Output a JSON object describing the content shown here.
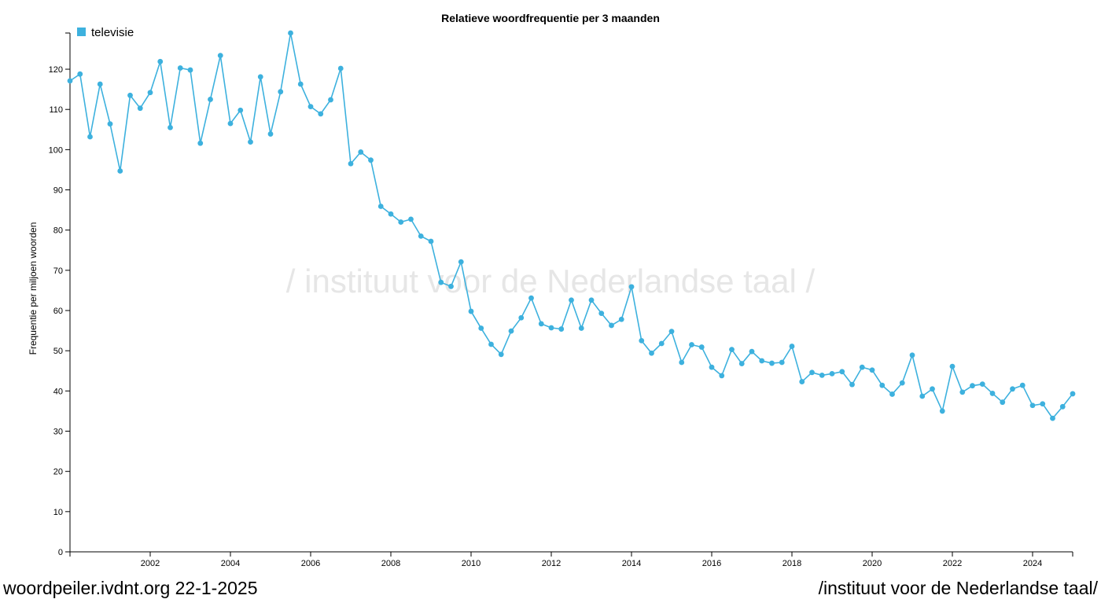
{
  "footer": {
    "left": "woordpeiler.ivdnt.org 22-1-2025",
    "right": "/instituut voor de Nederlandse taal/"
  },
  "watermark": "/ instituut voor de Nederlandse taal /",
  "colors": {
    "series": "#3db1de",
    "axis": "#000000",
    "watermark": "#e6e6e6"
  },
  "chart_data": {
    "type": "line",
    "title": "Relatieve woordfrequentie per 3 maanden",
    "xlabel": "",
    "ylabel": "Frequentie per miljoen woorden",
    "xlim": [
      2000.0,
      2025.0
    ],
    "ylim": [
      0,
      129
    ],
    "grid": false,
    "legend_position": "top-left",
    "x_ticks": [
      2002,
      2004,
      2006,
      2008,
      2010,
      2012,
      2014,
      2016,
      2018,
      2020,
      2022,
      2024
    ],
    "y_ticks": [
      0,
      10,
      20,
      30,
      40,
      50,
      60,
      70,
      80,
      90,
      100,
      110,
      120
    ],
    "series": [
      {
        "name": "televisie",
        "color": "#3db1de",
        "x": [
          2000.0,
          2000.25,
          2000.5,
          2000.75,
          2001.0,
          2001.25,
          2001.5,
          2001.75,
          2002.0,
          2002.25,
          2002.5,
          2002.75,
          2003.0,
          2003.25,
          2003.5,
          2003.75,
          2004.0,
          2004.25,
          2004.5,
          2004.75,
          2005.0,
          2005.25,
          2005.5,
          2005.75,
          2006.0,
          2006.25,
          2006.5,
          2006.75,
          2007.0,
          2007.25,
          2007.5,
          2007.75,
          2008.0,
          2008.25,
          2008.5,
          2008.75,
          2009.0,
          2009.25,
          2009.5,
          2009.75,
          2010.0,
          2010.25,
          2010.5,
          2010.75,
          2011.0,
          2011.25,
          2011.5,
          2011.75,
          2012.0,
          2012.25,
          2012.5,
          2012.75,
          2013.0,
          2013.25,
          2013.5,
          2013.75,
          2014.0,
          2014.25,
          2014.5,
          2014.75,
          2015.0,
          2015.25,
          2015.5,
          2015.75,
          2016.0,
          2016.25,
          2016.5,
          2016.75,
          2017.0,
          2017.25,
          2017.5,
          2017.75,
          2018.0,
          2018.25,
          2018.5,
          2018.75,
          2019.0,
          2019.25,
          2019.5,
          2019.75,
          2020.0,
          2020.25,
          2020.5,
          2020.75,
          2021.0,
          2021.25,
          2021.5,
          2021.75,
          2022.0,
          2022.25,
          2022.5,
          2022.75,
          2023.0,
          2023.25,
          2023.5,
          2023.75,
          2024.0,
          2024.25,
          2024.5,
          2024.75,
          2025.0
        ],
        "values": [
          117.1,
          118.8,
          103.2,
          116.3,
          106.4,
          94.7,
          113.5,
          110.3,
          114.2,
          121.9,
          105.5,
          120.3,
          119.8,
          101.6,
          112.5,
          123.4,
          106.5,
          109.8,
          101.9,
          118.1,
          103.9,
          114.4,
          129.0,
          116.3,
          110.7,
          108.9,
          112.4,
          120.2,
          96.5,
          99.4,
          97.4,
          85.9,
          84.0,
          82.0,
          82.7,
          78.5,
          77.2,
          67.0,
          66.0,
          72.1,
          59.8,
          55.6,
          51.6,
          49.1,
          54.9,
          58.2,
          63.1,
          56.7,
          55.7,
          55.4,
          62.6,
          55.6,
          62.6,
          59.3,
          56.3,
          57.8,
          65.9,
          52.5,
          49.4,
          51.8,
          54.8,
          47.1,
          51.5,
          50.9,
          45.9,
          43.8,
          50.3,
          46.8,
          49.8,
          47.5,
          46.9,
          47.1,
          51.1,
          42.3,
          44.6,
          43.9,
          44.3,
          44.8,
          41.6,
          45.9,
          45.2,
          41.4,
          39.2,
          42.0,
          48.9,
          38.7,
          40.5,
          35.0,
          46.1,
          39.7,
          41.3,
          41.7,
          39.4,
          37.2,
          40.5,
          41.4,
          36.4,
          36.8,
          33.2,
          36.1,
          39.3
        ]
      }
    ]
  }
}
